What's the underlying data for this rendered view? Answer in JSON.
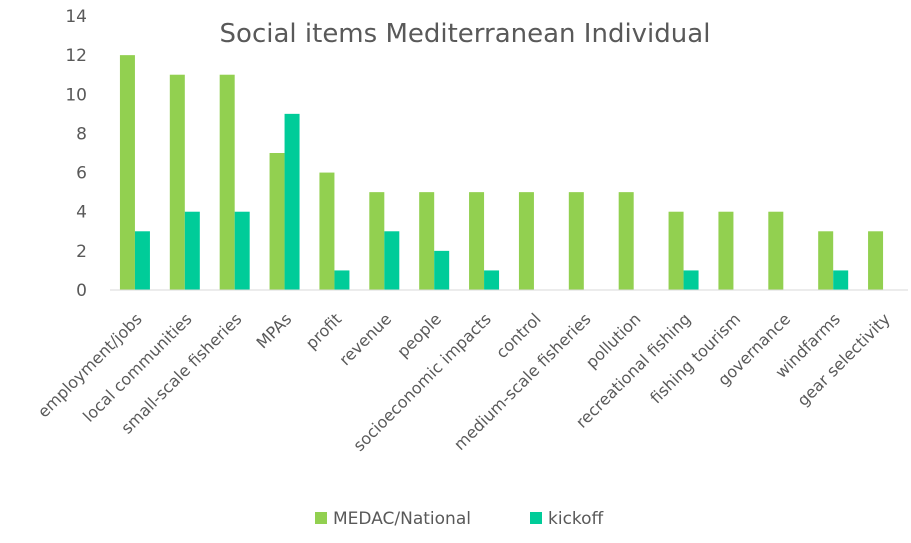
{
  "chart_data": {
    "type": "bar",
    "title": "Social items Mediterranean Individual",
    "xlabel": "",
    "ylabel": "",
    "ylim": [
      0,
      14
    ],
    "yticks": [
      0,
      2,
      4,
      6,
      8,
      10,
      12,
      14
    ],
    "grid": false,
    "legend_position": "bottom",
    "categories": [
      "employment/jobs",
      "local communities",
      "small-scale fisheries",
      "MPAs",
      "profit",
      "revenue",
      "people",
      "socioeconomic impacts",
      "control",
      "medium-scale fisheries",
      "pollution",
      "recreational fishing",
      "fishing tourism",
      "governance",
      "windfarms",
      "gear selectivity"
    ],
    "series": [
      {
        "name": "MEDAC/National",
        "color": "#92d050",
        "values": [
          12,
          11,
          11,
          7,
          6,
          5,
          5,
          5,
          5,
          5,
          5,
          4,
          4,
          4,
          3,
          3
        ]
      },
      {
        "name": "kickoff",
        "color": "#00cc99",
        "values": [
          3,
          4,
          4,
          9,
          1,
          3,
          2,
          1,
          0,
          0,
          0,
          1,
          0,
          0,
          1,
          0
        ]
      }
    ]
  }
}
